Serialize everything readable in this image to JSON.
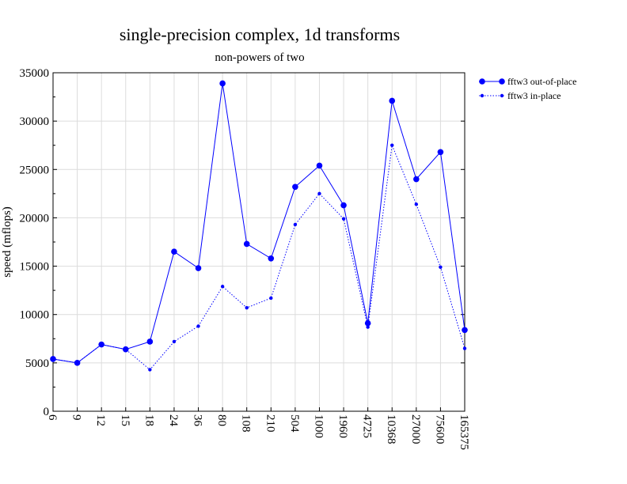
{
  "chart_data": {
    "type": "line",
    "title": "single-precision complex, 1d transforms",
    "subtitle": "non-powers of two",
    "xlabel": "",
    "ylabel": "speed (mflops)",
    "ylim": [
      0,
      35000
    ],
    "yticks": [
      "0",
      "5000",
      "10000",
      "15000",
      "20000",
      "25000",
      "30000",
      "35000"
    ],
    "categories": [
      "6",
      "9",
      "12",
      "15",
      "18",
      "24",
      "36",
      "80",
      "108",
      "210",
      "504",
      "1000",
      "1960",
      "4725",
      "10368",
      "27000",
      "75600",
      "165375"
    ],
    "grid": true,
    "legend_position": "top-right, outside plot",
    "series": [
      {
        "name": "fftw3 out-of-place",
        "style": "solid",
        "color": "#0000ff",
        "values": [
          5400,
          5000,
          6900,
          6400,
          7200,
          16500,
          14800,
          33900,
          17300,
          15800,
          23200,
          25400,
          21300,
          9100,
          32100,
          24000,
          26800,
          8400
        ]
      },
      {
        "name": "fftw3 in-place",
        "style": "dotted",
        "color": "#0000ff",
        "values": [
          5400,
          5000,
          6900,
          6400,
          4300,
          7200,
          8800,
          12900,
          10700,
          11700,
          19300,
          22500,
          19900,
          8700,
          27500,
          21400,
          14900,
          6500
        ]
      }
    ]
  }
}
